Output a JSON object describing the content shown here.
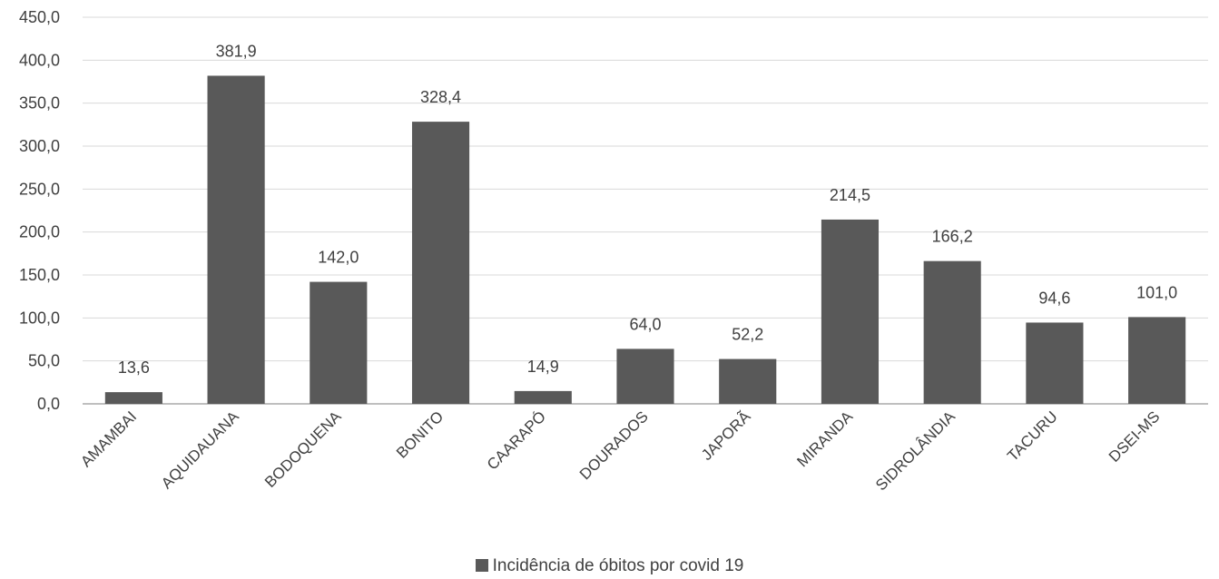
{
  "chart_data": {
    "type": "bar",
    "categories": [
      "AMAMBAI",
      "AQUIDAUANA",
      "BODOQUENA",
      "BONITO",
      "CAARAPÓ",
      "DOURADOS",
      "JAPORÃ",
      "MIRANDA",
      "SIDROLÂNDIA",
      "TACURU",
      "DSEI-MS"
    ],
    "series": [
      {
        "name": "Incidência de óbitos por covid 19",
        "values": [
          13.6,
          381.9,
          142.0,
          328.4,
          14.9,
          64.0,
          52.2,
          214.5,
          166.2,
          94.6,
          101.0
        ],
        "data_labels": [
          "13,6",
          "381,9",
          "142,0",
          "328,4",
          "14,9",
          "64,0",
          "52,2",
          "214,5",
          "166,2",
          "94,6",
          "101,0"
        ]
      }
    ],
    "ylim": [
      0,
      450
    ],
    "y_ticks": [
      0,
      50,
      100,
      150,
      200,
      250,
      300,
      350,
      400,
      450
    ],
    "y_tick_labels": [
      "0,0",
      "50,0",
      "100,0",
      "150,0",
      "200,0",
      "250,0",
      "300,0",
      "350,0",
      "400,0",
      "450,0"
    ],
    "grid": true,
    "legend_position": "bottom",
    "colors": {
      "bar": "#595959",
      "grid": "#d9d9d9",
      "axis": "#bfbfbf",
      "text": "#404040"
    }
  }
}
